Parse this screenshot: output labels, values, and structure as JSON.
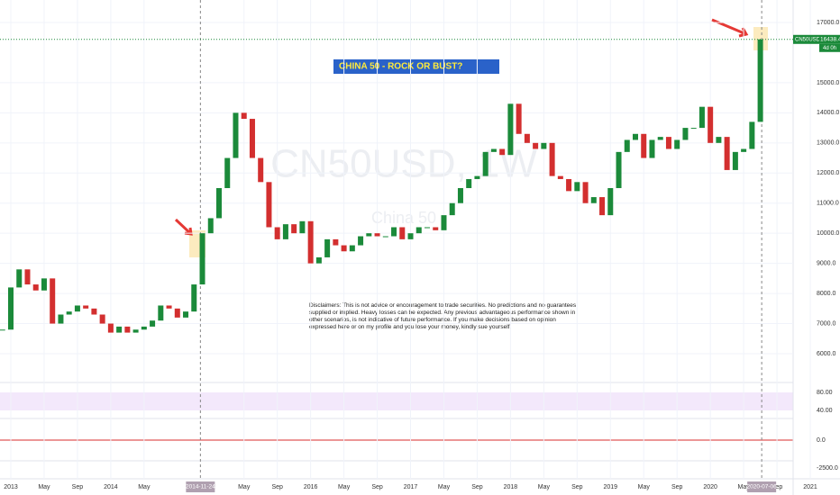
{
  "chart_data": {
    "type": "candlestick",
    "title": "CHINA 50  - ROCK OR BUST?",
    "watermark": "CN50USD, 1W",
    "watermark_sub": "China 50",
    "disclaimer": "Disclaimers: This is not advice or encouragement to trade securities. No predictions and no guarantees supplied or implied. Heavy losses can be expected. Any previous advantageous performance shown in other scenarios, is not indicative of future performance.  If you make decisions based on opinion expressed here or on my profile and you lose your money, kindly sue yourself.",
    "symbol": "CN50USD",
    "last_price": 16438.4,
    "last_price_label": "16438.4",
    "countdown": "4d 0h",
    "categories": [
      "2012-12",
      "2013-01",
      "2013-02",
      "2013-03",
      "2013-04",
      "2013-05",
      "2013-06",
      "2013-07",
      "2013-08",
      "2013-09",
      "2013-10",
      "2013-11",
      "2013-12",
      "2014-01",
      "2014-02",
      "2014-03",
      "2014-04",
      "2014-05",
      "2014-06",
      "2014-07",
      "2014-08",
      "2014-09",
      "2014-10",
      "2014-11",
      "2014-12",
      "2015-01",
      "2015-02",
      "2015-03",
      "2015-04",
      "2015-05",
      "2015-06",
      "2015-07",
      "2015-08",
      "2015-09",
      "2015-10",
      "2015-11",
      "2015-12",
      "2016-01",
      "2016-02",
      "2016-03",
      "2016-04",
      "2016-05",
      "2016-06",
      "2016-07",
      "2016-08",
      "2016-09",
      "2016-10",
      "2016-11",
      "2016-12",
      "2017-01",
      "2017-02",
      "2017-03",
      "2017-04",
      "2017-05",
      "2017-06",
      "2017-07",
      "2017-08",
      "2017-09",
      "2017-10",
      "2017-11",
      "2017-12",
      "2018-01",
      "2018-02",
      "2018-03",
      "2018-04",
      "2018-05",
      "2018-06",
      "2018-07",
      "2018-08",
      "2018-09",
      "2018-10",
      "2018-11",
      "2018-12",
      "2019-01",
      "2019-02",
      "2019-03",
      "2019-04",
      "2019-05",
      "2019-06",
      "2019-07",
      "2019-08",
      "2019-09",
      "2019-10",
      "2019-11",
      "2019-12",
      "2020-01",
      "2020-02",
      "2020-03",
      "2020-04",
      "2020-05",
      "2020-06",
      "2020-07"
    ],
    "values": [
      6800,
      8200,
      8800,
      8300,
      8100,
      8500,
      7000,
      7300,
      7400,
      7600,
      7500,
      7300,
      7000,
      6700,
      6900,
      6700,
      6800,
      6900,
      7100,
      7600,
      7500,
      7200,
      7400,
      8300,
      10000,
      10500,
      11500,
      12500,
      14000,
      13800,
      12500,
      11700,
      10200,
      9800,
      10300,
      10000,
      10400,
      9000,
      9200,
      9800,
      9600,
      9400,
      9600,
      9900,
      10000,
      9900,
      9900,
      10200,
      9800,
      10000,
      10200,
      10200,
      10100,
      10600,
      11000,
      11500,
      11800,
      11900,
      12700,
      12800,
      12600,
      14300,
      13300,
      13000,
      12800,
      13000,
      11900,
      11800,
      11400,
      11700,
      11000,
      11200,
      10600,
      11500,
      12700,
      13100,
      13300,
      12500,
      13100,
      13200,
      12800,
      13100,
      13500,
      13500,
      14200,
      13000,
      13200,
      12100,
      12700,
      12800,
      13700,
      16438.4
    ],
    "up_color": "#1b8a3a",
    "down_color": "#d32f2f",
    "ylim": [
      5500,
      17500
    ],
    "yticks": [
      {
        "value": 6000,
        "label": "6000.0"
      },
      {
        "value": 7000,
        "label": "7000.0"
      },
      {
        "value": 8000,
        "label": "8000.0"
      },
      {
        "value": 9000,
        "label": "9000.0"
      },
      {
        "value": 10000,
        "label": "10000.0"
      },
      {
        "value": 11000,
        "label": "11000.0"
      },
      {
        "value": 12000,
        "label": "12000.0"
      },
      {
        "value": 13000,
        "label": "13000.0"
      },
      {
        "value": 14000,
        "label": "14000.0"
      },
      {
        "value": 15000,
        "label": "15000.0"
      },
      {
        "value": 17000,
        "label": "17000.0"
      }
    ],
    "xticks": [
      {
        "value": "2013-01",
        "label": "2013"
      },
      {
        "value": "2013-05",
        "label": "May"
      },
      {
        "value": "2013-09",
        "label": "Sep"
      },
      {
        "value": "2014-01",
        "label": "2014"
      },
      {
        "value": "2014-05",
        "label": "May"
      },
      {
        "value": "2015-05",
        "label": "May"
      },
      {
        "value": "2015-09",
        "label": "Sep"
      },
      {
        "value": "2016-01",
        "label": "2016"
      },
      {
        "value": "2016-05",
        "label": "May"
      },
      {
        "value": "2016-09",
        "label": "Sep"
      },
      {
        "value": "2017-01",
        "label": "2017"
      },
      {
        "value": "2017-05",
        "label": "May"
      },
      {
        "value": "2017-09",
        "label": "Sep"
      },
      {
        "value": "2018-01",
        "label": "2018"
      },
      {
        "value": "2018-05",
        "label": "May"
      },
      {
        "value": "2018-09",
        "label": "Sep"
      },
      {
        "value": "2019-01",
        "label": "2019"
      },
      {
        "value": "2019-05",
        "label": "May"
      },
      {
        "value": "2019-09",
        "label": "Sep"
      },
      {
        "value": "2020-01",
        "label": "2020"
      },
      {
        "value": "2020-05",
        "label": "May"
      },
      {
        "value": "2020-09",
        "label": "Sep"
      },
      {
        "value": "2021-01",
        "label": "2021"
      }
    ],
    "markers": [
      "2014-11-24",
      "2020-07-06"
    ],
    "panes": [
      {
        "ticks": [
          "80.00",
          "40.00"
        ]
      },
      {
        "ticks": [
          "0.0"
        ]
      },
      {
        "ticks": [
          "-2500.0"
        ]
      }
    ],
    "grid": true
  }
}
